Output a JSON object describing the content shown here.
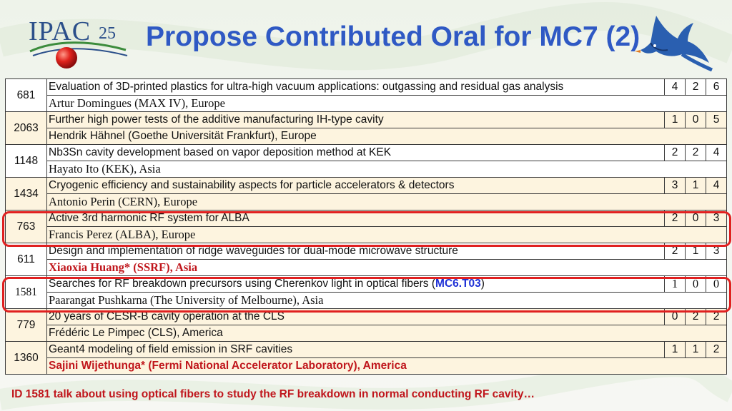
{
  "header": {
    "logo_text": "IPAC",
    "logo_year": "25",
    "title": "Propose Contributed Oral for MC7 (2)"
  },
  "rows": [
    {
      "id": "681",
      "title": "Evaluation of 3D-printed plastics for ultra-high vacuum applications: outgassing and residual gas analysis",
      "n1": "4",
      "n2": "2",
      "n3": "6",
      "author": "Artur Domingues (MAX IV), Europe"
    },
    {
      "id": "2063",
      "title": "Further high power tests of the additive manufacturing IH-type cavity",
      "n1": "1",
      "n2": "0",
      "n3": "5",
      "author": "Hendrik Hähnel (Goethe Universität Frankfurt), Europe"
    },
    {
      "id": "1148",
      "title": "Nb3Sn cavity development based on vapor deposition method at KEK",
      "n1": "2",
      "n2": "2",
      "n3": "4",
      "author": "Hayato Ito (KEK), Asia"
    },
    {
      "id": "1434",
      "title": "Cryogenic efficiency and sustainability aspects for particle accelerators & detectors",
      "n1": "3",
      "n2": "1",
      "n3": "4",
      "author": "Antonio Perin (CERN), Europe"
    },
    {
      "id": "763",
      "title": "Active 3rd harmonic RF system for ALBA",
      "n1": "2",
      "n2": "0",
      "n3": "3",
      "author": "Francis Perez (ALBA), Europe"
    },
    {
      "id": "611",
      "title": "Design and implementation of ridge waveguides for dual-mode microwave structure",
      "n1": "2",
      "n2": "1",
      "n3": "3",
      "author": "Xiaoxia Huang* (SSRF), Asia"
    },
    {
      "id": "1581",
      "title_pre": "Searches for RF breakdown precursors using Cherenkov light in optical fibers (",
      "title_link": "MC6.T03",
      "title_post": ")",
      "n1": "1",
      "n2": "0",
      "n3": "0",
      "author": "Paarangat Pushkarna (The University of Melbourne), Asia"
    },
    {
      "id": "779",
      "title": "20 years of CESR-B cavity operation at the CLS",
      "n1": "0",
      "n2": "2",
      "n3": "2",
      "author": "Frédéric Le Pimpec (CLS), America"
    },
    {
      "id": "1360",
      "title": "Geant4 modeling of field emission in SRF cavities",
      "n1": "1",
      "n2": "1",
      "n3": "2",
      "author": "Sajini Wijethunga* (Fermi National Accelerator Laboratory), America"
    }
  ],
  "footnote": "ID 1581 talk about using optical fibers to study the RF breakdown in normal conducting RF cavity…",
  "colors": {
    "title": "#2f59c4",
    "highlight": "#e02020",
    "alt_row": "#fdf4df",
    "note": "#c0161c"
  }
}
